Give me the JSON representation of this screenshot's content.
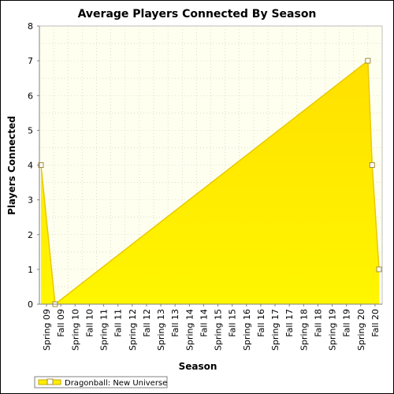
{
  "chart_data": {
    "type": "area",
    "title": "Average Players Connected By Season",
    "xlabel": "Season",
    "ylabel": "Players Connected",
    "ylim": [
      0,
      8
    ],
    "yticks": [
      "0",
      "1",
      "2",
      "3",
      "4",
      "5",
      "6",
      "7",
      "8"
    ],
    "grid": true,
    "legend_position": "bottom-left",
    "categories": [
      "Spring 09",
      "Fall 09",
      "Spring 10",
      "Fall 10",
      "Spring 11",
      "Fall 11",
      "Spring 12",
      "Fall 12",
      "Spring 13",
      "Fall 13",
      "Spring 14",
      "Fall 14",
      "Spring 15",
      "Fall 15",
      "Spring 16",
      "Fall 16",
      "Spring 17",
      "Fall 17",
      "Spring 18",
      "Fall 18",
      "Spring 19",
      "Fall 19",
      "Spring 20",
      "Fall 20"
    ],
    "series": [
      {
        "name": "Dragonball: New Universe",
        "color": "#ffee00",
        "points": [
          {
            "x": "Spring 09",
            "y": 4
          },
          {
            "x": "Fall 09",
            "y": 0
          },
          {
            "x": "Spring 20",
            "y": 7
          },
          {
            "x": "Fall 20",
            "y": 4
          },
          {
            "x": "Fall 20",
            "y": 1
          }
        ]
      }
    ],
    "colors": {
      "plot_background": "#fffff0",
      "area_fill": "#ffee00",
      "line": "#e8c900",
      "marker_edge": "#a08c3c"
    }
  }
}
